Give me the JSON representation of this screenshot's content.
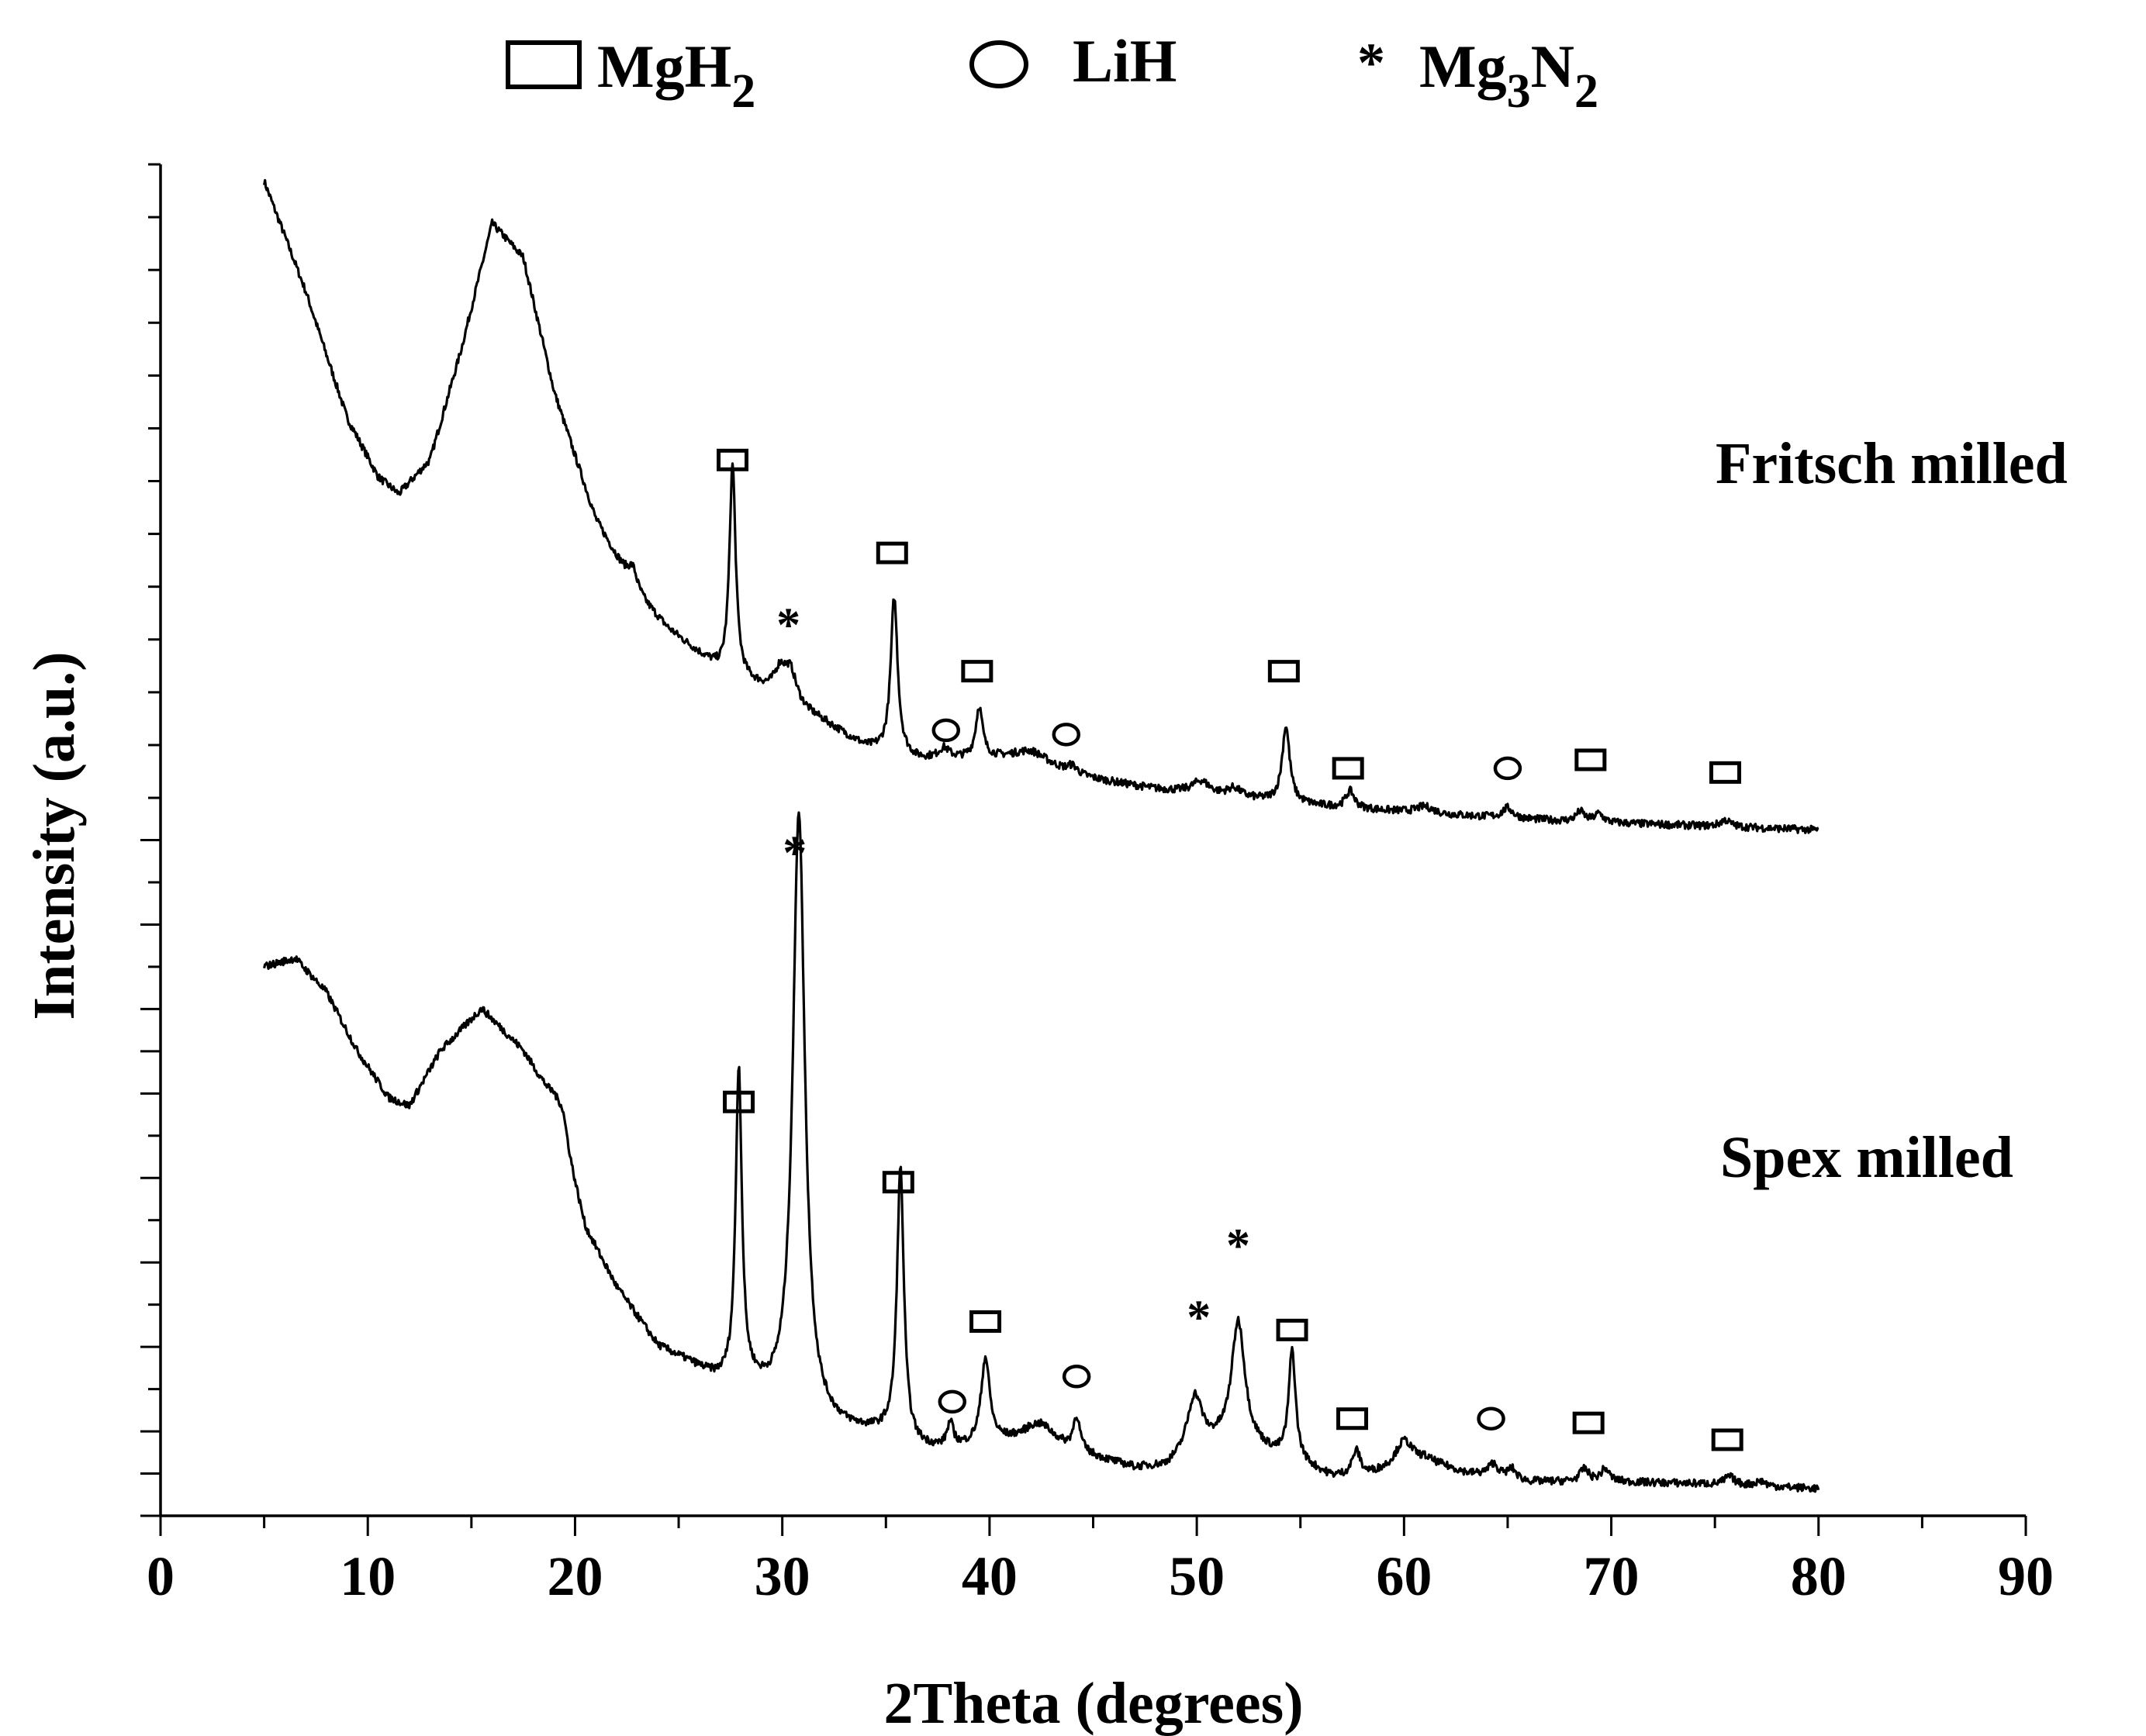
{
  "legend": {
    "items": [
      {
        "symbol": "square",
        "label": "MgH",
        "sub": "2"
      },
      {
        "symbol": "circle",
        "label": "LiH",
        "sub": ""
      },
      {
        "symbol": "asterisk",
        "label": "Mg",
        "sub": "3",
        "label2": "N",
        "sub2": "2"
      }
    ]
  },
  "chart_data": {
    "type": "line",
    "xlabel": "2Theta (degrees)",
    "ylabel": "Intensity (a.u.)",
    "xlim": [
      0,
      90
    ],
    "ylim": [
      0,
      16
    ],
    "x_ticks": [
      "0",
      "10",
      "20",
      "30",
      "40",
      "50",
      "60",
      "70",
      "80",
      "90"
    ],
    "y_ticks_labeled": false,
    "grid": false,
    "series": [
      {
        "name": "Fritsch milled",
        "baseline": 8.1,
        "x_range": [
          5,
          80
        ],
        "background": [
          [
            5,
            15.8
          ],
          [
            7,
            14.5
          ],
          [
            9,
            13.0
          ],
          [
            10.5,
            12.3
          ],
          [
            11.5,
            12.1
          ],
          [
            13,
            12.5
          ],
          [
            14.5,
            13.8
          ],
          [
            16,
            15.3
          ],
          [
            17.5,
            14.9
          ],
          [
            19,
            13.3
          ],
          [
            21,
            11.8
          ],
          [
            23,
            10.9
          ],
          [
            24.5,
            10.5
          ],
          [
            26,
            10.2
          ],
          [
            27,
            10.0
          ],
          [
            29,
            9.8
          ],
          [
            32,
            9.4
          ],
          [
            34,
            9.1
          ],
          [
            36.5,
            8.95
          ],
          [
            40,
            8.95
          ],
          [
            42,
            8.9
          ],
          [
            44,
            8.75
          ],
          [
            48,
            8.6
          ],
          [
            52,
            8.5
          ],
          [
            56,
            8.4
          ],
          [
            62,
            8.3
          ],
          [
            68,
            8.22
          ],
          [
            74,
            8.17
          ],
          [
            80,
            8.12
          ]
        ],
        "peaks": [
          {
            "x": 22.8,
            "h": 0.25,
            "w": 0.3
          },
          {
            "x": 27.6,
            "h": 2.5,
            "w": 0.18
          },
          {
            "x": 29.9,
            "h": 0.3,
            "w": 0.35
          },
          {
            "x": 30.4,
            "h": 0.35,
            "w": 0.35
          },
          {
            "x": 35.4,
            "h": 1.85,
            "w": 0.2
          },
          {
            "x": 37.8,
            "h": 0.12,
            "w": 0.3
          },
          {
            "x": 39.5,
            "h": 0.6,
            "w": 0.2
          },
          {
            "x": 42.0,
            "h": 0.15,
            "w": 1.2
          },
          {
            "x": 44.0,
            "h": 0.1,
            "w": 0.3
          },
          {
            "x": 50.2,
            "h": 0.15,
            "w": 0.5
          },
          {
            "x": 51.8,
            "h": 0.1,
            "w": 0.4
          },
          {
            "x": 54.3,
            "h": 0.9,
            "w": 0.22
          },
          {
            "x": 57.4,
            "h": 0.2,
            "w": 0.25
          },
          {
            "x": 61.0,
            "h": 0.08,
            "w": 0.5
          },
          {
            "x": 65.0,
            "h": 0.12,
            "w": 0.3
          },
          {
            "x": 68.5,
            "h": 0.12,
            "w": 0.25
          },
          {
            "x": 69.4,
            "h": 0.1,
            "w": 0.25
          },
          {
            "x": 75.5,
            "h": 0.08,
            "w": 0.3
          }
        ]
      },
      {
        "name": "Spex milled",
        "baseline": 0.3,
        "x_range": [
          5,
          80
        ],
        "background": [
          [
            5,
            6.5
          ],
          [
            6.5,
            6.6
          ],
          [
            8,
            6.2
          ],
          [
            9.5,
            5.5
          ],
          [
            11,
            4.95
          ],
          [
            12,
            4.85
          ],
          [
            13.5,
            5.5
          ],
          [
            15.5,
            6.0
          ],
          [
            17.5,
            5.5
          ],
          [
            19,
            4.9
          ],
          [
            20.5,
            3.4
          ],
          [
            22,
            2.7
          ],
          [
            24,
            2.0
          ],
          [
            25.5,
            1.8
          ],
          [
            26.8,
            1.6
          ],
          [
            28.5,
            1.5
          ],
          [
            31,
            1.1
          ],
          [
            33,
            1.0
          ],
          [
            35,
            0.95
          ],
          [
            36.5,
            0.8
          ],
          [
            38,
            0.75
          ],
          [
            40,
            0.85
          ],
          [
            42,
            0.9
          ],
          [
            44,
            0.75
          ],
          [
            47,
            0.55
          ],
          [
            48.5,
            0.55
          ],
          [
            51,
            0.8
          ],
          [
            53,
            0.75
          ],
          [
            55,
            0.6
          ],
          [
            56.5,
            0.45
          ],
          [
            58,
            0.45
          ],
          [
            61,
            0.65
          ],
          [
            63,
            0.5
          ],
          [
            66,
            0.4
          ],
          [
            70,
            0.4
          ],
          [
            74,
            0.38
          ],
          [
            80,
            0.32
          ]
        ],
        "peaks": [
          {
            "x": 19.4,
            "h": 0.3,
            "w": 0.3
          },
          {
            "x": 27.9,
            "h": 3.7,
            "w": 0.18
          },
          {
            "x": 30.8,
            "h": 7.2,
            "w": 0.35
          },
          {
            "x": 35.7,
            "h": 3.2,
            "w": 0.2
          },
          {
            "x": 38.1,
            "h": 0.3,
            "w": 0.2
          },
          {
            "x": 39.8,
            "h": 1.0,
            "w": 0.25
          },
          {
            "x": 42.5,
            "h": 0.2,
            "w": 0.8
          },
          {
            "x": 44.2,
            "h": 0.4,
            "w": 0.2
          },
          {
            "x": 49.9,
            "h": 0.7,
            "w": 0.45
          },
          {
            "x": 52.0,
            "h": 1.5,
            "w": 0.4
          },
          {
            "x": 54.6,
            "h": 1.3,
            "w": 0.2
          },
          {
            "x": 57.7,
            "h": 0.3,
            "w": 0.25
          },
          {
            "x": 60.0,
            "h": 0.3,
            "w": 0.5
          },
          {
            "x": 64.3,
            "h": 0.15,
            "w": 0.3
          },
          {
            "x": 65.2,
            "h": 0.12,
            "w": 0.25
          },
          {
            "x": 68.7,
            "h": 0.15,
            "w": 0.25
          },
          {
            "x": 69.7,
            "h": 0.15,
            "w": 0.25
          },
          {
            "x": 75.7,
            "h": 0.1,
            "w": 0.3
          },
          {
            "x": 77.2,
            "h": 0.06,
            "w": 0.3
          }
        ]
      }
    ],
    "series_labels": [
      "Fritsch milled",
      "Spex milled"
    ],
    "annotations": [
      {
        "marker": "square",
        "x": 27.6,
        "y": 12.5
      },
      {
        "marker": "asterisk",
        "x": 30.3,
        "y": 10.6
      },
      {
        "marker": "square",
        "x": 35.3,
        "y": 11.4
      },
      {
        "marker": "circle",
        "x": 37.9,
        "y": 9.3
      },
      {
        "marker": "square",
        "x": 39.4,
        "y": 10.0
      },
      {
        "marker": "circle",
        "x": 43.7,
        "y": 9.25
      },
      {
        "marker": "square",
        "x": 54.2,
        "y": 10.0
      },
      {
        "marker": "square",
        "x": 57.3,
        "y": 8.85
      },
      {
        "marker": "circle",
        "x": 65.0,
        "y": 8.85
      },
      {
        "marker": "square",
        "x": 69.0,
        "y": 8.95
      },
      {
        "marker": "square",
        "x": 75.5,
        "y": 8.8
      },
      {
        "marker": "asterisk",
        "x": 30.6,
        "y": 7.9
      },
      {
        "marker": "square",
        "x": 27.9,
        "y": 4.9
      },
      {
        "marker": "square",
        "x": 35.6,
        "y": 3.95
      },
      {
        "marker": "circle",
        "x": 38.2,
        "y": 1.35
      },
      {
        "marker": "square",
        "x": 39.8,
        "y": 2.3
      },
      {
        "marker": "circle",
        "x": 44.2,
        "y": 1.65
      },
      {
        "marker": "asterisk",
        "x": 50.1,
        "y": 2.4
      },
      {
        "marker": "asterisk",
        "x": 52.0,
        "y": 3.25
      },
      {
        "marker": "square",
        "x": 54.6,
        "y": 2.2
      },
      {
        "marker": "square",
        "x": 57.5,
        "y": 1.15
      },
      {
        "marker": "circle",
        "x": 64.2,
        "y": 1.15
      },
      {
        "marker": "square",
        "x": 68.9,
        "y": 1.1
      },
      {
        "marker": "square",
        "x": 75.6,
        "y": 0.9
      }
    ]
  }
}
